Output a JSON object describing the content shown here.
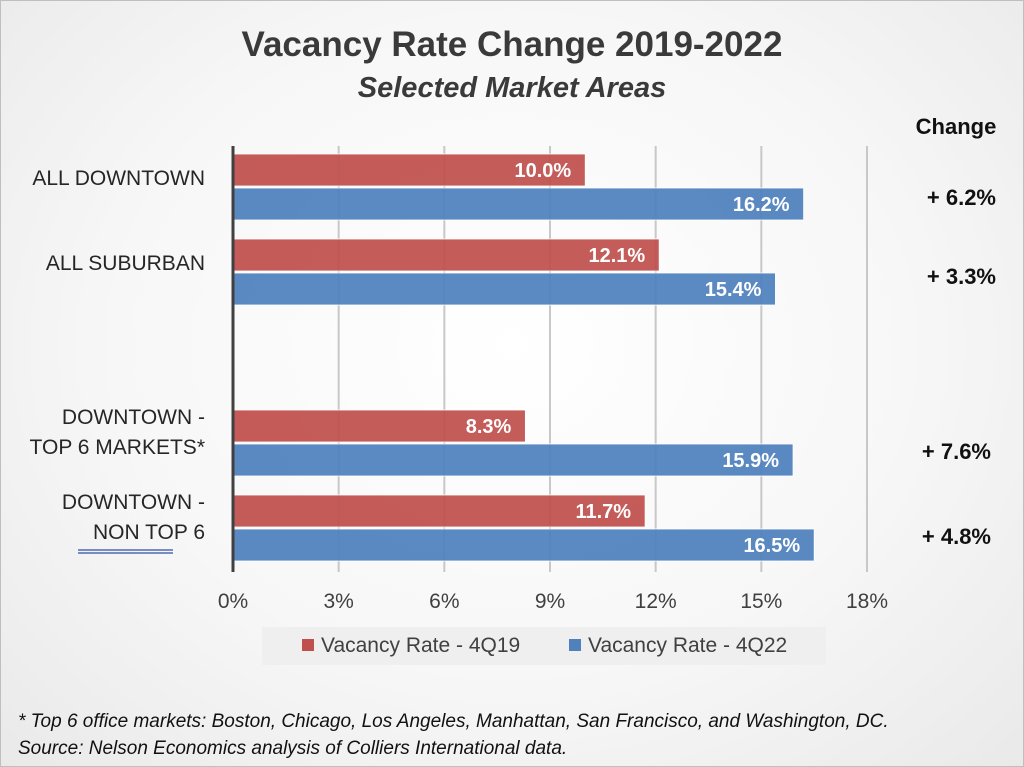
{
  "chart_data": {
    "type": "bar",
    "orientation": "horizontal",
    "title": "Vacancy Rate Change 2019-2022",
    "subtitle": "Selected Market Areas",
    "category_lines": [
      [
        "ALL DOWNTOWN"
      ],
      [
        "ALL SUBURBAN"
      ],
      [],
      [
        "DOWNTOWN -",
        "TOP 6 MARKETS*"
      ],
      [
        "DOWNTOWN -",
        "NON TOP 6"
      ]
    ],
    "series": [
      {
        "name": "Vacancy Rate - 4Q19",
        "color": "#c0504d",
        "values": [
          10.0,
          12.1,
          null,
          8.3,
          11.7
        ],
        "labels": [
          "10.0%",
          "12.1%",
          "",
          "8.3%",
          "11.7%"
        ]
      },
      {
        "name": "Vacancy Rate - 4Q22",
        "color": "#4f81bd",
        "values": [
          16.2,
          15.4,
          null,
          15.9,
          16.5
        ],
        "labels": [
          "16.2%",
          "15.4%",
          "",
          "15.9%",
          "16.5%"
        ]
      }
    ],
    "xlim": [
      0,
      18
    ],
    "xticks": [
      "0%",
      "3%",
      "6%",
      "9%",
      "12%",
      "15%",
      "18%"
    ],
    "grid": true,
    "legend_position": "bottom",
    "change_header": "Change",
    "change_values": [
      "+ 6.2%",
      "+ 3.3%",
      "",
      "+ 7.6%",
      "+ 4.8%"
    ],
    "footnote": [
      "* Top 6 office markets: Boston, Chicago, Los Angeles, Manhattan,  San Francisco, and Washington, DC.",
      "Source: Nelson Economics analysis of Colliers International data."
    ]
  }
}
